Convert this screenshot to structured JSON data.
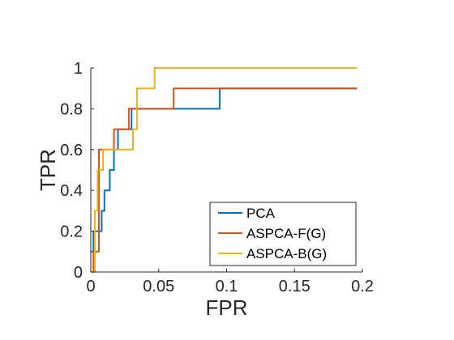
{
  "chart_data": {
    "type": "line",
    "xlabel": "FPR",
    "ylabel": "TPR",
    "xlim": [
      0,
      0.2
    ],
    "ylim": [
      0,
      1
    ],
    "xticks": [
      0,
      0.05,
      0.1,
      0.15,
      0.2
    ],
    "xtick_labels": [
      "0",
      "0.05",
      "0.1",
      "0.15",
      "0.2"
    ],
    "yticks": [
      0,
      0.2,
      0.4,
      0.6,
      0.8,
      1
    ],
    "ytick_labels": [
      "0",
      "0.2",
      "0.4",
      "0.6",
      "0.8",
      "1"
    ],
    "grid": false,
    "legend_position": "bottom-right",
    "series": [
      {
        "name": "PCA",
        "color": "#0072BD",
        "x": [
          0,
          0.002,
          0.002,
          0.008,
          0.008,
          0.01,
          0.01,
          0.014,
          0.014,
          0.017,
          0.017,
          0.02,
          0.02,
          0.03,
          0.03,
          0.062,
          0.062,
          0.095,
          0.095,
          0.196
        ],
        "y": [
          0.1,
          0.1,
          0.2,
          0.2,
          0.3,
          0.3,
          0.4,
          0.4,
          0.5,
          0.5,
          0.6,
          0.6,
          0.7,
          0.7,
          0.8,
          0.8,
          0.8,
          0.8,
          0.9,
          0.9
        ]
      },
      {
        "name": "ASPCA-F(G)",
        "color": "#D95319",
        "x": [
          0,
          0.002,
          0.002,
          0.006,
          0.006,
          0.017,
          0.017,
          0.028,
          0.028,
          0.061,
          0.061,
          0.196
        ],
        "y": [
          0,
          0,
          0.1,
          0.1,
          0.6,
          0.6,
          0.7,
          0.7,
          0.8,
          0.8,
          0.9,
          0.9
        ]
      },
      {
        "name": "ASPCA-B(G)",
        "color": "#EDB120",
        "x": [
          0,
          0.003,
          0.003,
          0.005,
          0.005,
          0.009,
          0.009,
          0.015,
          0.015,
          0.02,
          0.02,
          0.031,
          0.031,
          0.034,
          0.034,
          0.047,
          0.047,
          0.196
        ],
        "y": [
          0,
          0,
          0.3,
          0.3,
          0.5,
          0.5,
          0.6,
          0.6,
          0.6,
          0.6,
          0.6,
          0.6,
          0.7,
          0.7,
          0.9,
          0.9,
          1.0,
          1.0
        ]
      }
    ]
  }
}
